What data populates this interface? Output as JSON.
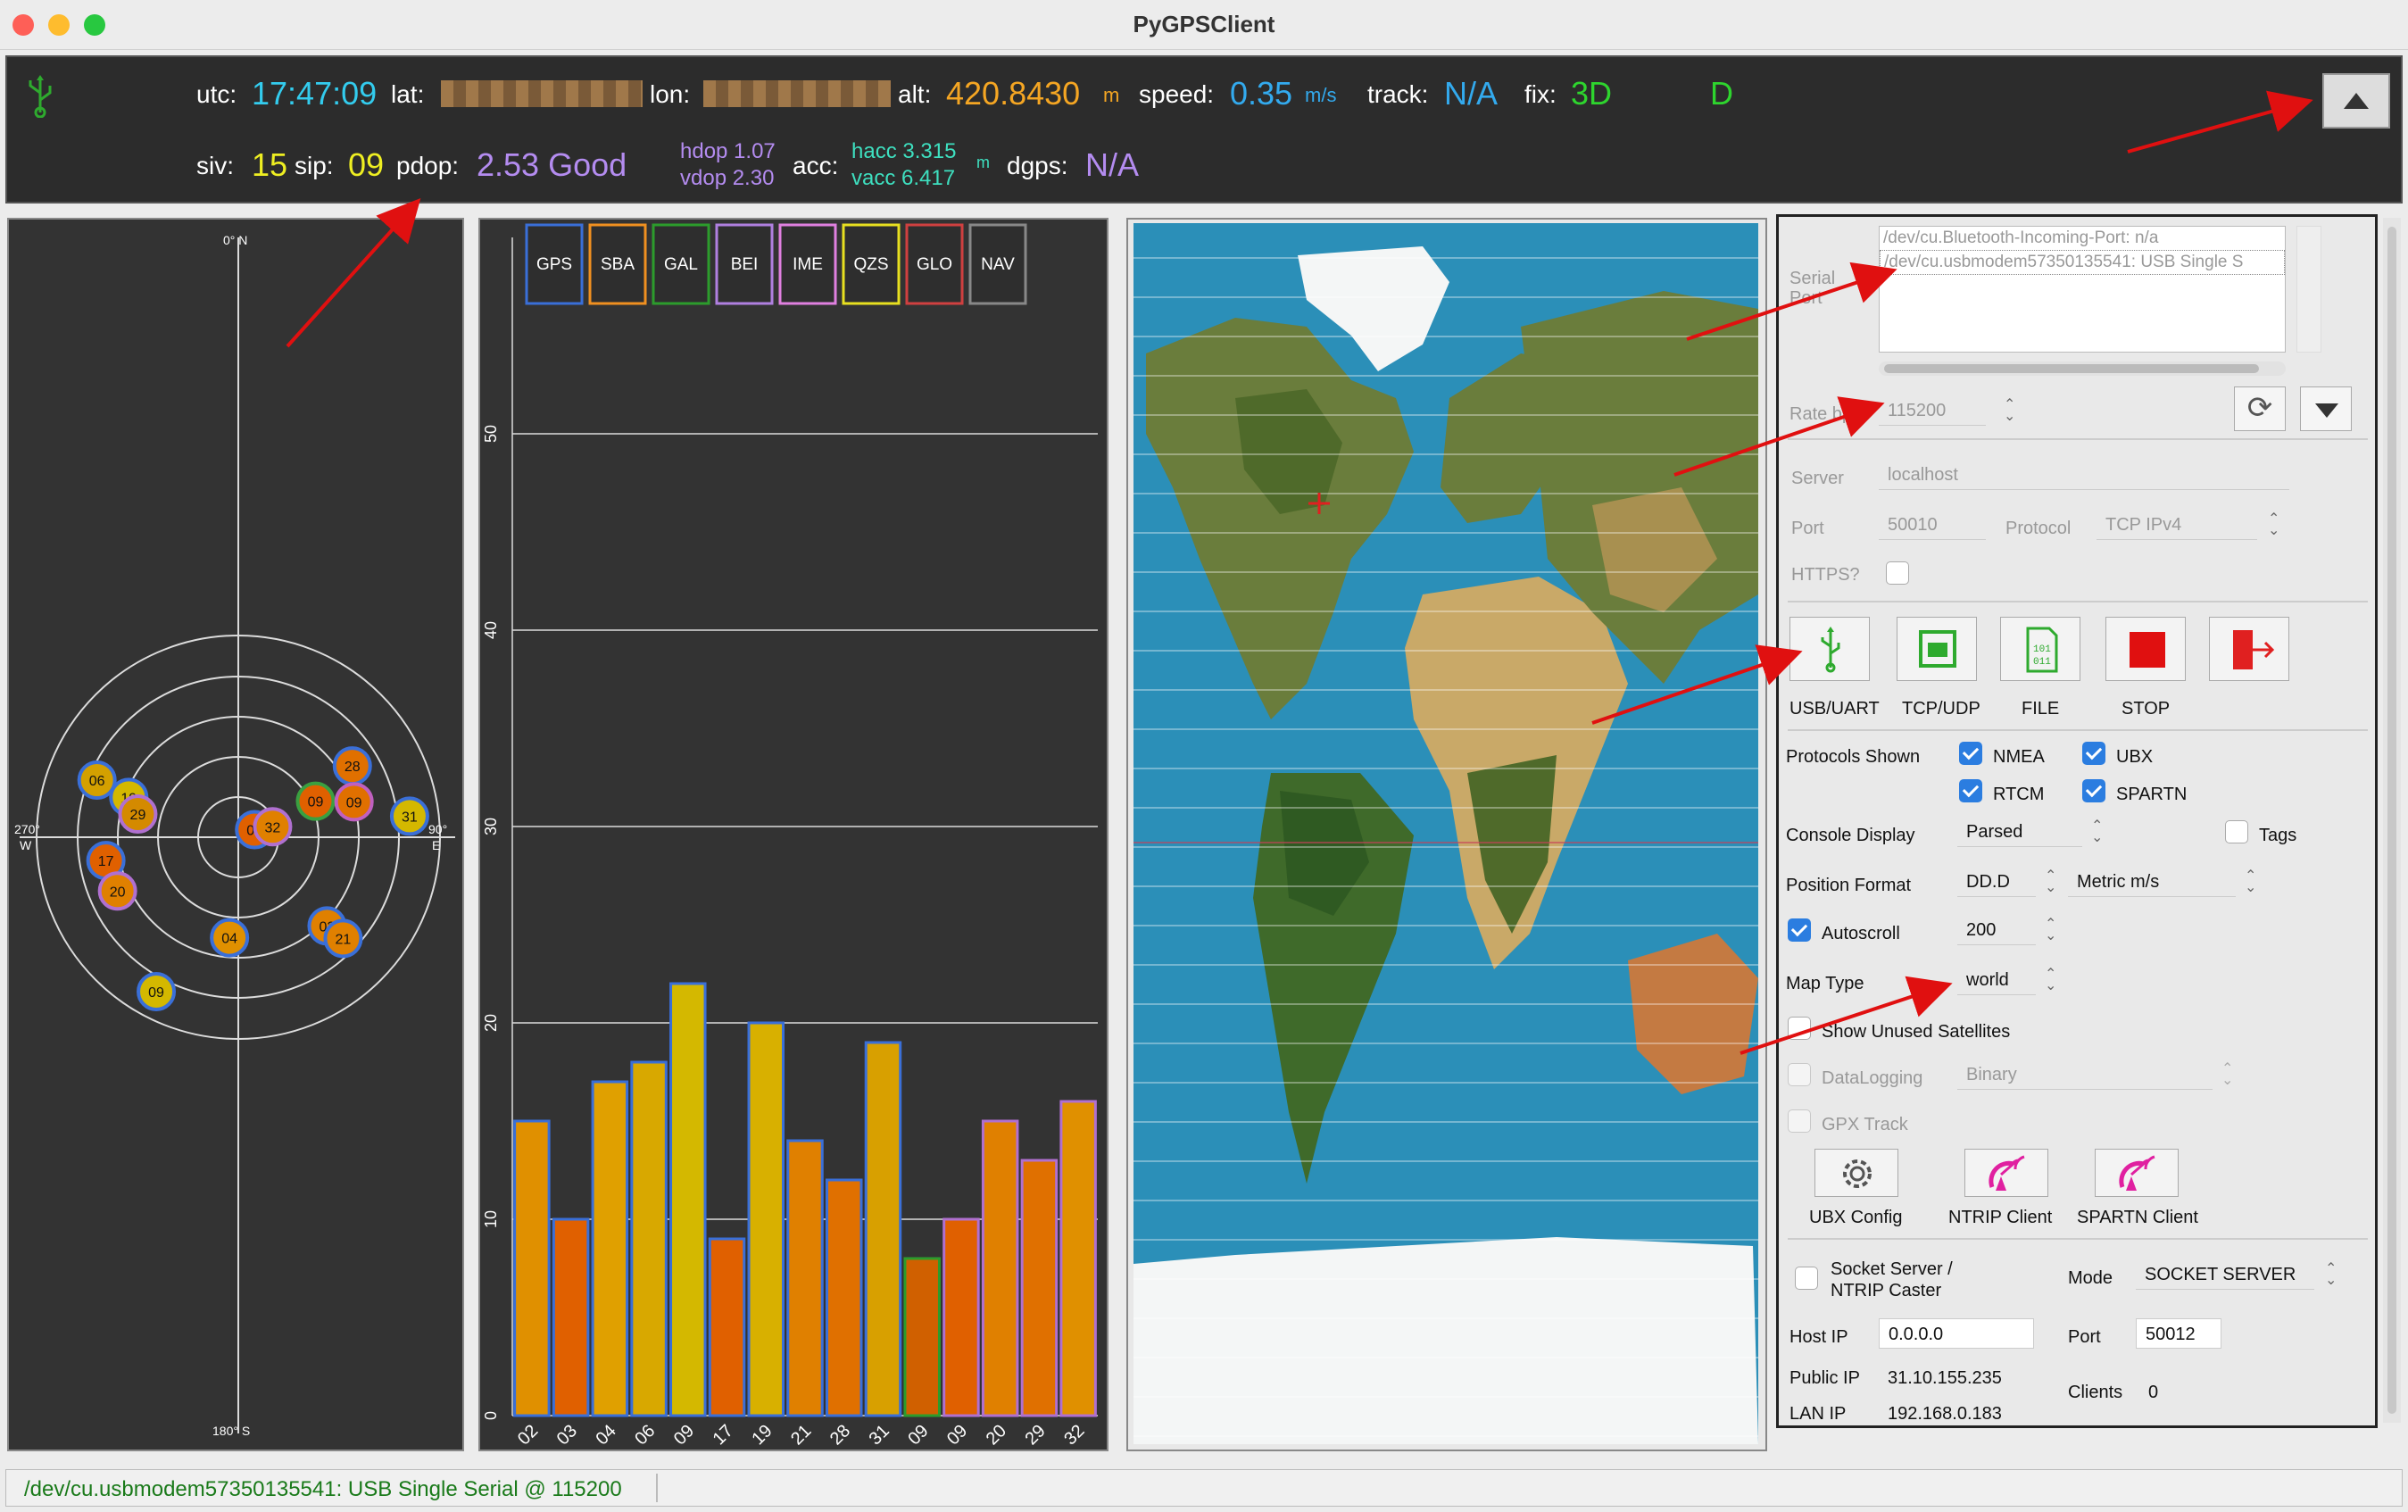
{
  "app": {
    "title": "PyGPSClient"
  },
  "banner": {
    "utc_label": "utc:",
    "utc": "17:47:09",
    "lat_label": "lat:",
    "lon_label": "lon:",
    "alt_label": "alt:",
    "alt": "420.8430",
    "alt_unit": "m",
    "speed_label": "speed:",
    "speed": "0.35",
    "speed_unit": "m/s",
    "track_label": "track:",
    "track": "N/A",
    "fix_label": "fix:",
    "fix": "3D",
    "fix2": "D",
    "siv_label": "siv:",
    "siv": "15",
    "sip_label": "sip:",
    "sip": "09",
    "pdop_label": "pdop:",
    "pdop": "2.53 Good",
    "hdop": "hdop 1.07",
    "vdop": "vdop 2.30",
    "acc_label": "acc:",
    "hacc": "hacc 3.315",
    "vacc": "vacc 6.417",
    "acc_unit": "m",
    "dgps_label": "dgps:",
    "dgps": "N/A"
  },
  "skyview": {
    "north": "0° N",
    "south": "180° S",
    "west": "270°",
    "west2": "W",
    "east": "90°",
    "east2": "E",
    "sats": [
      {
        "id": "06",
        "az": 292,
        "el": 22,
        "fill": "#d4a000",
        "edge": "#3a6fd8"
      },
      {
        "id": "28",
        "az": 58,
        "el": 30,
        "fill": "#e07000",
        "edge": "#3a6fd8"
      },
      {
        "id": "19",
        "az": 290,
        "el": 38,
        "fill": "#d4b800",
        "edge": "#3a6fd8"
      },
      {
        "id": "29",
        "az": 283,
        "el": 44,
        "fill": "#d48a00",
        "edge": "#b070d0"
      },
      {
        "id": "09",
        "az": 65,
        "el": 52,
        "fill": "#e06000",
        "edge": "#3aa040"
      },
      {
        "id": "09",
        "az": 73,
        "el": 36,
        "fill": "#e07000",
        "edge": "#c060c0"
      },
      {
        "id": "03",
        "az": 65,
        "el": 82,
        "fill": "#e06000",
        "edge": "#3a6fd8"
      },
      {
        "id": "32",
        "az": 73,
        "el": 74,
        "fill": "#e08000",
        "edge": "#b070d0"
      },
      {
        "id": "31",
        "az": 83,
        "el": 13,
        "fill": "#d4b800",
        "edge": "#3a6fd8"
      },
      {
        "id": "17",
        "az": 260,
        "el": 30,
        "fill": "#e06000",
        "edge": "#3a6fd8"
      },
      {
        "id": "20",
        "az": 246,
        "el": 31,
        "fill": "#e08000",
        "edge": "#b070d0"
      },
      {
        "id": "04",
        "az": 185,
        "el": 45,
        "fill": "#e09000",
        "edge": "#3a6fd8"
      },
      {
        "id": "02",
        "az": 135,
        "el": 34,
        "fill": "#e08000",
        "edge": "#3a6fd8"
      },
      {
        "id": "21",
        "az": 134,
        "el": 25,
        "fill": "#e08000",
        "edge": "#3a6fd8"
      },
      {
        "id": "09",
        "az": 208,
        "el": 12,
        "fill": "#d4b800",
        "edge": "#3a6fd8"
      }
    ]
  },
  "legend": [
    {
      "label": "GPS",
      "color": "#3a6fd8"
    },
    {
      "label": "SBA",
      "color": "#f09020"
    },
    {
      "label": "GAL",
      "color": "#2c9c2c"
    },
    {
      "label": "BEI",
      "color": "#b080e0"
    },
    {
      "label": "IME",
      "color": "#e080e0"
    },
    {
      "label": "QZS",
      "color": "#e8e020"
    },
    {
      "label": "GLO",
      "color": "#d04040"
    },
    {
      "label": "NAV",
      "color": "#888888"
    }
  ],
  "chart_data": {
    "type": "bar",
    "ylim": [
      0,
      60
    ],
    "yticks": [
      "0",
      "10",
      "20",
      "30",
      "40",
      "50"
    ],
    "categories": [
      "02",
      "03",
      "04",
      "06",
      "09",
      "17",
      "19",
      "21",
      "28",
      "31",
      "09",
      "09",
      "20",
      "29",
      "32"
    ],
    "values": [
      15,
      10,
      17,
      18,
      22,
      9,
      20,
      14,
      12,
      19,
      8,
      10,
      15,
      13,
      16
    ],
    "fills": [
      "#e09000",
      "#e06000",
      "#e0a000",
      "#d8a800",
      "#d4b800",
      "#e06000",
      "#d8b000",
      "#e08000",
      "#e07000",
      "#d8a000",
      "#d06000",
      "#e06000",
      "#e08000",
      "#e07000",
      "#e09000"
    ],
    "edges": [
      "#3a6fd8",
      "#3a6fd8",
      "#3a6fd8",
      "#3a6fd8",
      "#3a6fd8",
      "#3a6fd8",
      "#3a6fd8",
      "#3a6fd8",
      "#3a6fd8",
      "#3a6fd8",
      "#2c9c2c",
      "#b070d0",
      "#b070d0",
      "#b070d0",
      "#b070d0"
    ]
  },
  "console": {
    "serial_label": "Serial Port",
    "ports": [
      "/dev/cu.Bluetooth-Incoming-Port: n/a",
      "/dev/cu.usbmodem57350135541: USB Single S"
    ],
    "rate_label": "Rate bps",
    "rate": "115200",
    "server_label": "Server",
    "server": "localhost",
    "port_label": "Port",
    "port": "50010",
    "protocol_label": "Protocol",
    "protocol": "TCP IPv4",
    "https_label": "HTTPS?",
    "btn_usb": "USB/UART",
    "btn_tcp": "TCP/UDP",
    "btn_file": "FILE",
    "btn_stop": "STOP",
    "protocols_label": "Protocols Shown",
    "nmea": "NMEA",
    "ubx": "UBX",
    "rtcm": "RTCM",
    "spartn": "SPARTN",
    "console_display_label": "Console Display",
    "console_display": "Parsed",
    "tags": "Tags",
    "position_format_label": "Position Format",
    "position_format": "DD.D",
    "units": "Metric m/s",
    "autoscroll_label": "Autoscroll",
    "autoscroll_lines": "200",
    "map_type_label": "Map Type",
    "map_type": "world",
    "show_unused": "Show Unused Satellites",
    "datalogging": "DataLogging",
    "datalog_type": "Binary",
    "gpx": "GPX Track",
    "ubx_config": "UBX Config",
    "ntrip_client": "NTRIP Client",
    "spartn_client": "SPARTN Client",
    "socket_label": "Socket Server /",
    "socket_label2": "NTRIP Caster",
    "mode_label": "Mode",
    "mode": "SOCKET SERVER",
    "host_ip_label": "Host IP",
    "host_ip": "0.0.0.0",
    "sock_port_label": "Port",
    "sock_port": "50012",
    "public_ip_label": "Public IP",
    "public_ip": "31.10.155.235",
    "lan_ip_label": "LAN IP",
    "lan_ip": "192.168.0.183",
    "clients_label": "Clients",
    "clients": "0"
  },
  "status": {
    "text": "/dev/cu.usbmodem57350135541: USB Single Serial @ 115200"
  }
}
